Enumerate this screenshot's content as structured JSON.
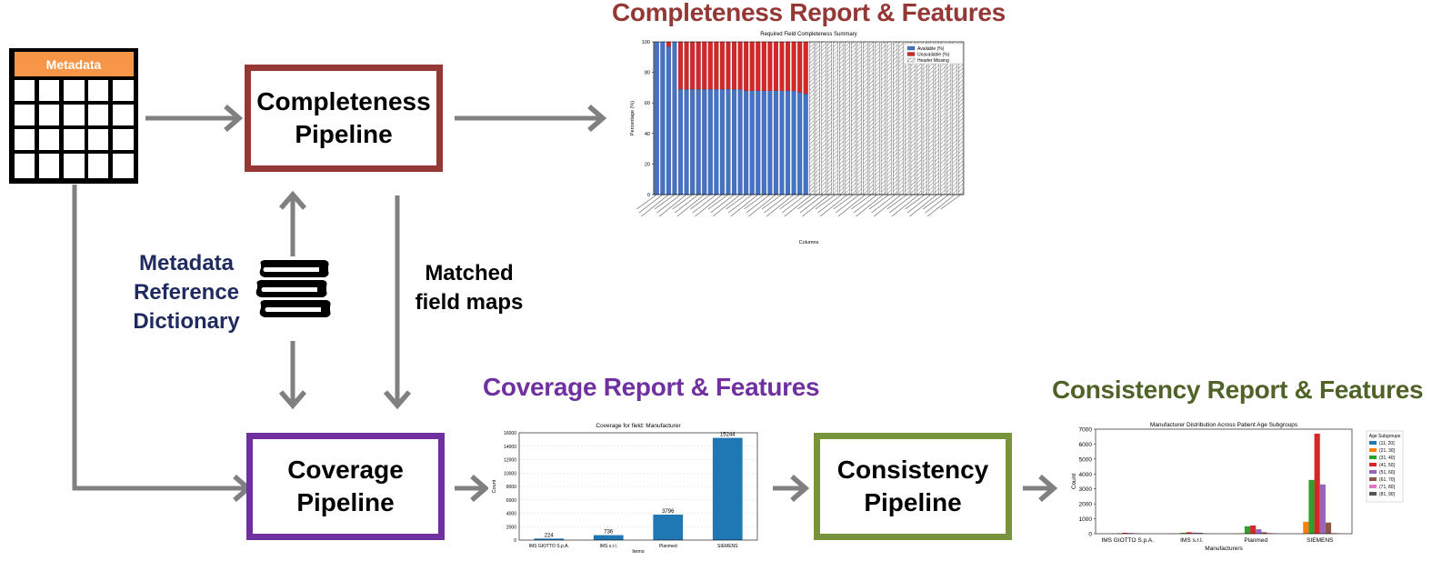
{
  "colors": {
    "completeness": "#953735",
    "coverage": "#7030A0",
    "consistency": "#77933C",
    "dictionary": "#1F2A5E",
    "arrow": "#808080",
    "metadata_header": "#F79646"
  },
  "metadata_table": {
    "header": "Metadata"
  },
  "pipelines": {
    "completeness": {
      "line1": "Completeness",
      "line2": "Pipeline"
    },
    "coverage": {
      "line1": "Coverage",
      "line2": "Pipeline"
    },
    "consistency": {
      "line1": "Consistency",
      "line2": "Pipeline"
    }
  },
  "dictionary": {
    "line1": "Metadata",
    "line2": "Reference",
    "line3": "Dictionary",
    "icon": "books-icon"
  },
  "matched": {
    "line1": "Matched",
    "line2": "field maps"
  },
  "titles": {
    "completeness": "Completeness Report & Features",
    "coverage": "Coverage Report & Features",
    "consistency": "Consistency Report & Features"
  },
  "chart_data": [
    {
      "type": "bar",
      "title": "Required Field Completeness Summary",
      "xlabel": "Columns",
      "ylabel": "Percentage (%)",
      "ylim": [
        0,
        100
      ],
      "yticks": [
        0,
        20,
        40,
        60,
        80,
        100
      ],
      "legend": [
        "Available (%)",
        "Unavailable (%)",
        "Header Missing"
      ],
      "legend_position": "top-right",
      "stacked": true,
      "available": [
        100,
        100,
        97,
        100,
        69,
        69,
        69,
        69,
        69,
        69,
        69,
        69,
        69,
        69,
        69,
        68,
        68,
        68,
        68,
        68,
        68,
        68,
        68,
        68,
        67,
        66
      ],
      "unavailable": [
        0,
        0,
        3,
        0,
        31,
        31,
        31,
        31,
        31,
        31,
        31,
        31,
        31,
        31,
        31,
        32,
        32,
        32,
        32,
        32,
        32,
        32,
        32,
        32,
        33,
        34
      ],
      "header_missing_count": 26
    },
    {
      "type": "bar",
      "title": "Coverage for field: Manufacturer",
      "xlabel": "Items",
      "ylabel": "Count",
      "ylim": [
        0,
        16000
      ],
      "yticks": [
        0,
        2000,
        4000,
        6000,
        8000,
        10000,
        12000,
        14000,
        16000
      ],
      "categories": [
        "IMS GIOTTO S.p.A.",
        "IMS s.r.l.",
        "Planmed",
        "SIEMENS"
      ],
      "values": [
        224,
        736,
        3796,
        15244
      ]
    },
    {
      "type": "bar",
      "title": "Manufacturer Distribution Across Patient Age Subgroups",
      "xlabel": "Manufacturers",
      "ylabel": "Count",
      "ylim": [
        0,
        7000
      ],
      "yticks": [
        0,
        1000,
        2000,
        3000,
        4000,
        5000,
        6000,
        7000
      ],
      "categories": [
        "IMS GIOTTO S.p.A.",
        "IMS s.r.l.",
        "Planmed",
        "SIEMENS"
      ],
      "legend_title": "Age Subgroups",
      "legend_position": "right",
      "series": [
        {
          "name": "(11, 20]",
          "color": "#1f77b4",
          "values": [
            0,
            10,
            10,
            5
          ]
        },
        {
          "name": "(21, 30]",
          "color": "#ff7f0e",
          "values": [
            5,
            20,
            30,
            800
          ]
        },
        {
          "name": "(31, 40]",
          "color": "#2ca02c",
          "values": [
            30,
            60,
            500,
            3600
          ]
        },
        {
          "name": "(41, 50]",
          "color": "#d62728",
          "values": [
            60,
            100,
            550,
            6700
          ]
        },
        {
          "name": "(51, 60]",
          "color": "#9467bd",
          "values": [
            50,
            80,
            300,
            3300
          ]
        },
        {
          "name": "(61, 70]",
          "color": "#8c564b",
          "values": [
            30,
            60,
            100,
            750
          ]
        },
        {
          "name": "(71, 80]",
          "color": "#e377c2",
          "values": [
            10,
            20,
            50,
            50
          ]
        },
        {
          "name": "(81, 90]",
          "color": "#555555",
          "values": [
            0,
            5,
            10,
            10
          ]
        }
      ]
    }
  ]
}
